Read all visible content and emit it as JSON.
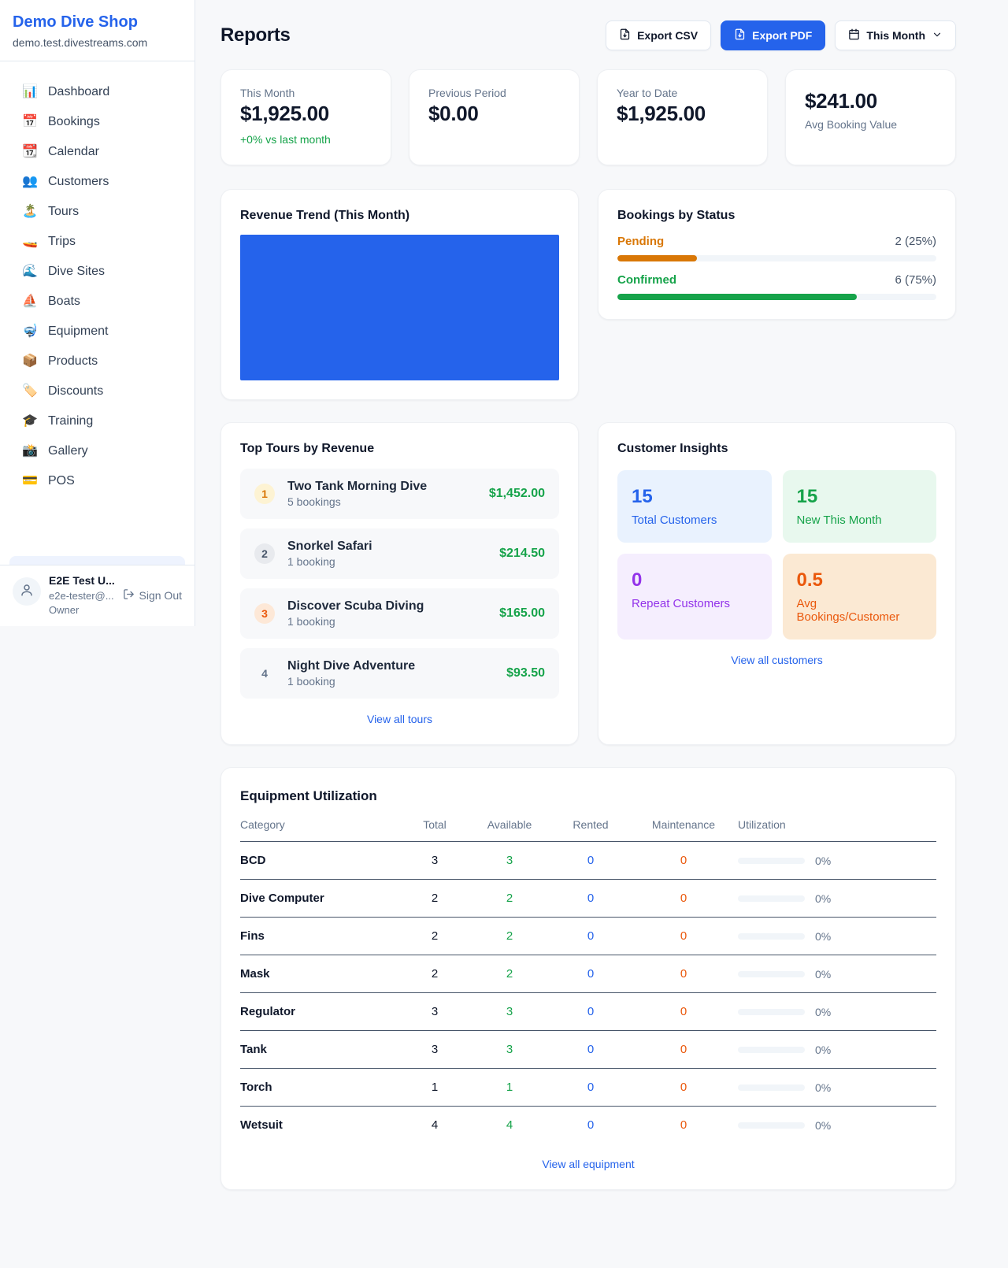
{
  "colors": {
    "accent_blue": "#2563eb",
    "money_green": "#16a34a",
    "pending_orange": "#d97706",
    "maintenance_orange": "#ea580c",
    "purple": "#9333ea"
  },
  "sidebar": {
    "brand_title": "Demo Dive Shop",
    "brand_subdomain": "demo.test.divestreams.com",
    "nav_items": [
      {
        "icon": "📊",
        "icon_name": "dashboard-icon",
        "label": "Dashboard"
      },
      {
        "icon": "📅",
        "icon_name": "bookings-icon",
        "label": "Bookings"
      },
      {
        "icon": "📆",
        "icon_name": "calendar-icon",
        "label": "Calendar"
      },
      {
        "icon": "👥",
        "icon_name": "customers-icon",
        "label": "Customers"
      },
      {
        "icon": "🏝️",
        "icon_name": "tours-icon",
        "label": "Tours"
      },
      {
        "icon": "🚤",
        "icon_name": "trips-icon",
        "label": "Trips"
      },
      {
        "icon": "🌊",
        "icon_name": "dive-sites-icon",
        "label": "Dive Sites"
      },
      {
        "icon": "⛵",
        "icon_name": "boats-icon",
        "label": "Boats"
      },
      {
        "icon": "🤿",
        "icon_name": "equipment-icon",
        "label": "Equipment"
      },
      {
        "icon": "📦",
        "icon_name": "products-icon",
        "label": "Products"
      },
      {
        "icon": "🏷️",
        "icon_name": "discounts-icon",
        "label": "Discounts"
      },
      {
        "icon": "🎓",
        "icon_name": "training-icon",
        "label": "Training"
      },
      {
        "icon": "📸",
        "icon_name": "gallery-icon",
        "label": "Gallery"
      },
      {
        "icon": "💳",
        "icon_name": "pos-icon",
        "label": "POS"
      }
    ],
    "user": {
      "name": "E2E Test U...",
      "email": "e2e-tester@...",
      "role": "Owner",
      "sign_out_label": "Sign Out"
    }
  },
  "header": {
    "title": "Reports",
    "export_csv_label": "Export CSV",
    "export_pdf_label": "Export PDF",
    "period_selector_label": "This Month"
  },
  "stat_cards": [
    {
      "label": "This Month",
      "value": "$1,925.00",
      "delta": "+0% vs last month"
    },
    {
      "label": "Previous Period",
      "value": "$0.00"
    },
    {
      "label": "Year to Date",
      "value": "$1,925.00"
    },
    {
      "label": "Avg Booking Value",
      "value": "$241.00",
      "value_first": true
    }
  ],
  "revenue_trend": {
    "title": "Revenue Trend (This Month)",
    "chart_type": "bar",
    "bar_color": "#2563eb",
    "bars": [
      {
        "fill_pct": 100
      }
    ]
  },
  "bookings_by_status": {
    "title": "Bookings by Status",
    "items": [
      {
        "label": "Pending",
        "value": "2 (25%)",
        "percent": 25,
        "color": "#d97706"
      },
      {
        "label": "Confirmed",
        "value": "6 (75%)",
        "percent": 75,
        "color": "#16a34a"
      }
    ]
  },
  "top_tours": {
    "title": "Top Tours by Revenue",
    "items": [
      {
        "rank": "1",
        "name": "Two Tank Morning Dive",
        "bookings": "5 bookings",
        "revenue": "$1,452.00",
        "badge_bg": "#fdf3d3",
        "badge_color": "#d97706"
      },
      {
        "rank": "2",
        "name": "Snorkel Safari",
        "bookings": "1 booking",
        "revenue": "$214.50",
        "badge_bg": "#e8eaee",
        "badge_color": "#475569"
      },
      {
        "rank": "3",
        "name": "Discover Scuba Diving",
        "bookings": "1 booking",
        "revenue": "$165.00",
        "badge_bg": "#fde8d7",
        "badge_color": "#ea580c"
      },
      {
        "rank": "4",
        "name": "Night Dive Adventure",
        "bookings": "1 booking",
        "revenue": "$93.50",
        "badge_bg": "transparent",
        "badge_color": "#64748b"
      }
    ],
    "view_all_label": "View all tours"
  },
  "customer_insights": {
    "title": "Customer Insights",
    "tiles": [
      {
        "value": "15",
        "label": "Total Customers",
        "color": "#2563eb",
        "bg": "#e9f2fe"
      },
      {
        "value": "15",
        "label": "New This Month",
        "color": "#16a34a",
        "bg": "#e8f8ee"
      },
      {
        "value": "0",
        "label": "Repeat Customers",
        "color": "#9333ea",
        "bg": "#f5eefe"
      },
      {
        "value": "0.5",
        "label": "Avg Bookings/Customer",
        "color": "#ea580c",
        "bg": "#fbe9d3"
      }
    ],
    "view_all_label": "View all customers"
  },
  "equipment": {
    "title": "Equipment Utilization",
    "columns": [
      "Category",
      "Total",
      "Available",
      "Rented",
      "Maintenance",
      "Utilization"
    ],
    "rows": [
      {
        "category": "BCD",
        "total": "3",
        "available": "3",
        "rented": "0",
        "maintenance": "0",
        "utilization": "0%",
        "utilization_pct": 0
      },
      {
        "category": "Dive Computer",
        "total": "2",
        "available": "2",
        "rented": "0",
        "maintenance": "0",
        "utilization": "0%",
        "utilization_pct": 0
      },
      {
        "category": "Fins",
        "total": "2",
        "available": "2",
        "rented": "0",
        "maintenance": "0",
        "utilization": "0%",
        "utilization_pct": 0
      },
      {
        "category": "Mask",
        "total": "2",
        "available": "2",
        "rented": "0",
        "maintenance": "0",
        "utilization": "0%",
        "utilization_pct": 0
      },
      {
        "category": "Regulator",
        "total": "3",
        "available": "3",
        "rented": "0",
        "maintenance": "0",
        "utilization": "0%",
        "utilization_pct": 0
      },
      {
        "category": "Tank",
        "total": "3",
        "available": "3",
        "rented": "0",
        "maintenance": "0",
        "utilization": "0%",
        "utilization_pct": 0
      },
      {
        "category": "Torch",
        "total": "1",
        "available": "1",
        "rented": "0",
        "maintenance": "0",
        "utilization": "0%",
        "utilization_pct": 0
      },
      {
        "category": "Wetsuit",
        "total": "4",
        "available": "4",
        "rented": "0",
        "maintenance": "0",
        "utilization": "0%",
        "utilization_pct": 0
      }
    ],
    "view_all_label": "View all equipment"
  }
}
